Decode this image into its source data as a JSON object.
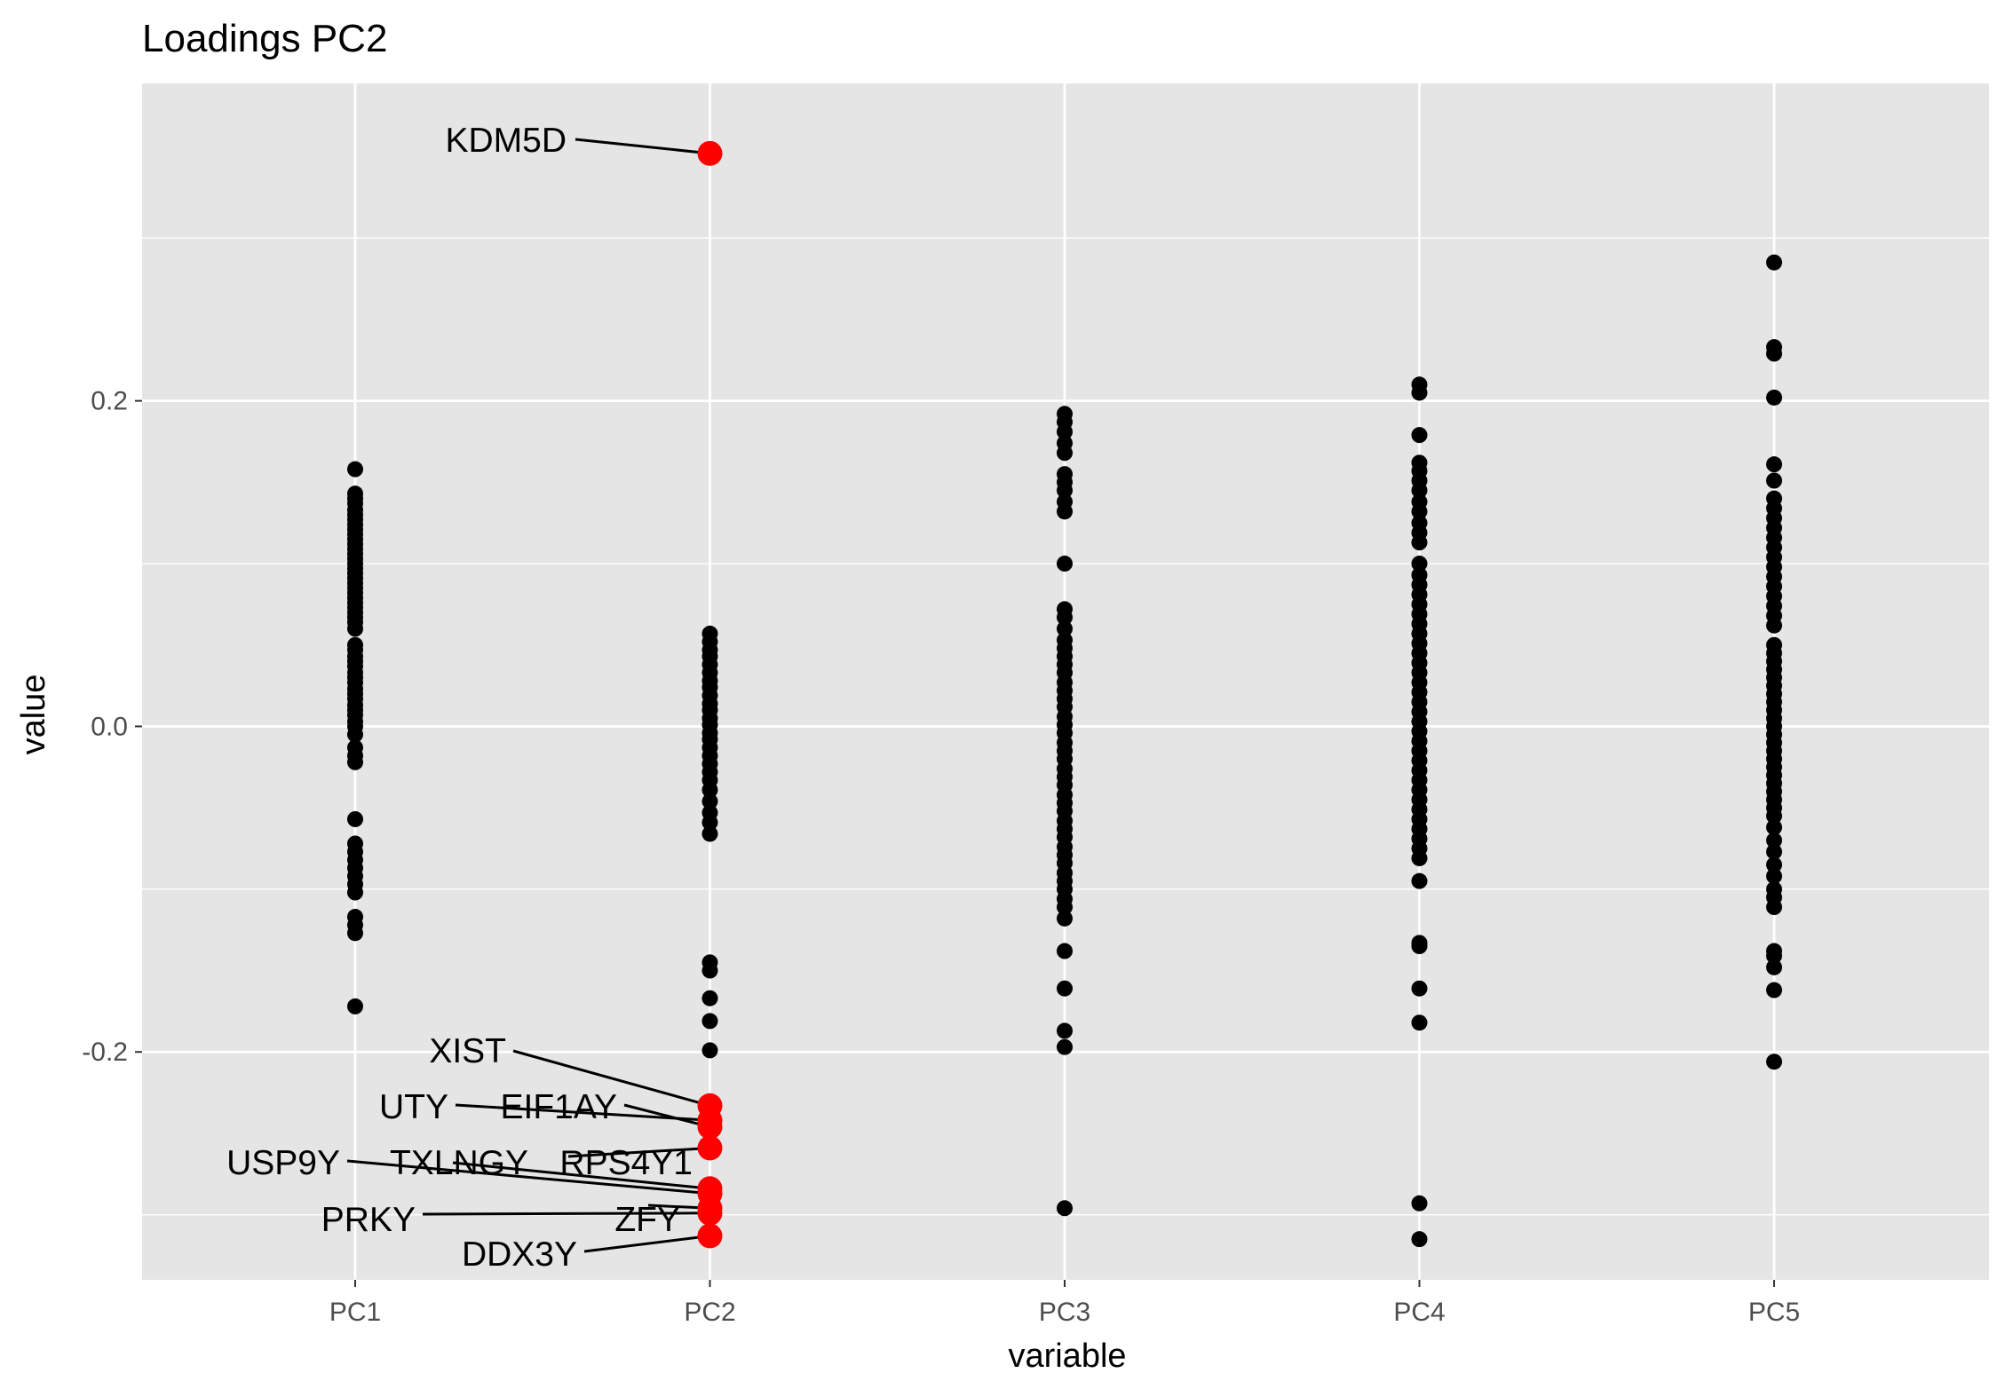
{
  "chart_data": {
    "type": "scatter",
    "title": "Loadings PC2",
    "xlabel": "variable",
    "ylabel": "value",
    "categories": [
      "PC1",
      "PC2",
      "PC3",
      "PC4",
      "PC5"
    ],
    "ylim": [
      -0.34,
      0.395
    ],
    "yticks": [
      -0.2,
      0.0,
      0.2
    ],
    "ytick_labels": [
      "-0.2",
      "0.0",
      "0.2"
    ],
    "grid": true,
    "panel_background": "#e5e5e5",
    "grid_color": "#ffffff",
    "point_color": "#000000",
    "highlight_color": "#ff0000",
    "series": [
      {
        "category": "PC1",
        "values": [
          0.158,
          0.143,
          0.14,
          0.137,
          0.133,
          0.13,
          0.127,
          0.124,
          0.121,
          0.118,
          0.115,
          0.112,
          0.109,
          0.106,
          0.103,
          0.1,
          0.097,
          0.094,
          0.091,
          0.088,
          0.085,
          0.082,
          0.079,
          0.076,
          0.073,
          0.07,
          0.067,
          0.064,
          0.06,
          0.05,
          0.047,
          0.043,
          0.04,
          0.037,
          0.033,
          0.03,
          0.027,
          0.023,
          0.02,
          0.017,
          0.013,
          0.01,
          0.007,
          0.003,
          0.0,
          -0.005,
          -0.013,
          -0.018,
          -0.022,
          -0.057,
          -0.072,
          -0.077,
          -0.082,
          -0.087,
          -0.092,
          -0.097,
          -0.102,
          -0.117,
          -0.122,
          -0.127,
          -0.172
        ]
      },
      {
        "category": "PC2",
        "values": [
          0.057,
          0.052,
          0.047,
          0.043,
          0.038,
          0.033,
          0.028,
          0.024,
          0.019,
          0.014,
          0.01,
          0.005,
          0.001,
          -0.004,
          -0.008,
          -0.013,
          -0.018,
          -0.023,
          -0.028,
          -0.033,
          -0.039,
          -0.046,
          -0.053,
          -0.059,
          -0.066,
          -0.145,
          -0.15,
          -0.167,
          -0.181,
          -0.199
        ]
      },
      {
        "category": "PC3",
        "values": [
          0.192,
          0.187,
          0.181,
          0.174,
          0.168,
          0.155,
          0.15,
          0.145,
          0.138,
          0.132,
          0.1,
          0.072,
          0.067,
          0.06,
          0.053,
          0.048,
          0.043,
          0.038,
          0.033,
          0.027,
          0.022,
          0.017,
          0.012,
          0.006,
          0.001,
          -0.004,
          -0.01,
          -0.015,
          -0.02,
          -0.026,
          -0.031,
          -0.036,
          -0.042,
          -0.047,
          -0.052,
          -0.058,
          -0.063,
          -0.068,
          -0.074,
          -0.079,
          -0.084,
          -0.09,
          -0.095,
          -0.1,
          -0.106,
          -0.111,
          -0.118,
          -0.138,
          -0.161,
          -0.187,
          -0.197,
          -0.296
        ]
      },
      {
        "category": "PC4",
        "values": [
          0.21,
          0.205,
          0.179,
          0.162,
          0.157,
          0.151,
          0.145,
          0.138,
          0.132,
          0.125,
          0.119,
          0.113,
          0.1,
          0.093,
          0.087,
          0.081,
          0.075,
          0.069,
          0.063,
          0.057,
          0.051,
          0.045,
          0.039,
          0.033,
          0.027,
          0.021,
          0.015,
          0.009,
          0.003,
          -0.003,
          -0.009,
          -0.015,
          -0.021,
          -0.027,
          -0.033,
          -0.039,
          -0.045,
          -0.051,
          -0.057,
          -0.063,
          -0.069,
          -0.075,
          -0.081,
          -0.095,
          -0.133,
          -0.135,
          -0.161,
          -0.182,
          -0.293,
          -0.315
        ]
      },
      {
        "category": "PC5",
        "values": [
          0.285,
          0.233,
          0.229,
          0.202,
          0.161,
          0.151,
          0.14,
          0.134,
          0.128,
          0.122,
          0.116,
          0.11,
          0.104,
          0.098,
          0.092,
          0.086,
          0.08,
          0.074,
          0.068,
          0.062,
          0.05,
          0.045,
          0.04,
          0.035,
          0.03,
          0.025,
          0.02,
          0.015,
          0.01,
          0.005,
          0.0,
          -0.005,
          -0.01,
          -0.015,
          -0.02,
          -0.025,
          -0.03,
          -0.035,
          -0.04,
          -0.045,
          -0.05,
          -0.055,
          -0.062,
          -0.07,
          -0.077,
          -0.085,
          -0.092,
          -0.1,
          -0.105,
          -0.111,
          -0.138,
          -0.141,
          -0.148,
          -0.162,
          -0.206
        ]
      }
    ],
    "highlighted": [
      {
        "category": "PC2",
        "label": "KDM5D",
        "value": 0.352
      },
      {
        "category": "PC2",
        "label": "XIST",
        "value": -0.233
      },
      {
        "category": "PC2",
        "label": "UTY",
        "value": -0.242
      },
      {
        "category": "PC2",
        "label": "EIF1AY",
        "value": -0.246
      },
      {
        "category": "PC2",
        "label": "RPS4Y1",
        "value": -0.259
      },
      {
        "category": "PC2",
        "label": "TXLNGY",
        "value": -0.284
      },
      {
        "category": "PC2",
        "label": "USP9Y",
        "value": -0.287
      },
      {
        "category": "PC2",
        "label": "ZFY",
        "value": -0.296
      },
      {
        "category": "PC2",
        "label": "PRKY",
        "value": -0.299
      },
      {
        "category": "PC2",
        "label": "DDX3Y",
        "value": -0.313
      }
    ]
  }
}
